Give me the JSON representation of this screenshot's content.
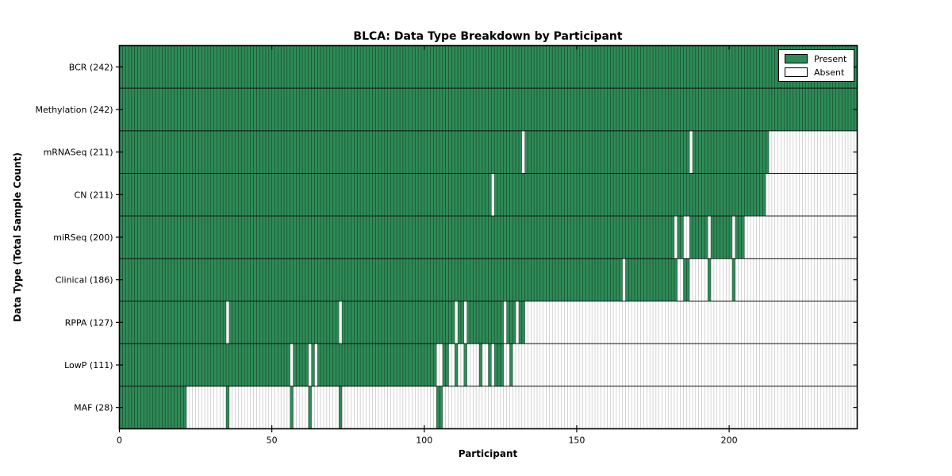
{
  "title": "BLCA: Data Type Breakdown by Participant",
  "xlabel": "Participant",
  "ylabel": "Data Type (Total Sample Count)",
  "legend": {
    "present_label": "Present",
    "absent_label": "Absent"
  },
  "colors": {
    "present": "#2E8B57",
    "absent": "#FFFFFF",
    "border": "#000000",
    "separator_dark": "rgba(0,0,0,0.55)",
    "separator_light": "rgba(0,0,0,0.28)"
  },
  "chart_data": {
    "type": "heatmap",
    "title": "BLCA: Data Type Breakdown by Participant",
    "xlabel": "Participant",
    "ylabel": "Data Type (Total Sample Count)",
    "n_participants": 242,
    "x_ticks": [
      0,
      50,
      100,
      150,
      200
    ],
    "xlim": [
      0,
      242
    ],
    "legend_entries": [
      "Present",
      "Absent"
    ],
    "legend_position": "upper right",
    "grid": false,
    "rows": [
      {
        "name": "BCR",
        "label": "BCR (242)",
        "count": 242,
        "present_ranges": [
          [
            0,
            241
          ]
        ]
      },
      {
        "name": "Methylation",
        "label": "Methylation (242)",
        "count": 242,
        "present_ranges": [
          [
            0,
            241
          ]
        ]
      },
      {
        "name": "mRNASeq",
        "label": "mRNASeq (211)",
        "count": 211,
        "present_ranges": [
          [
            0,
            131
          ],
          [
            133,
            186
          ],
          [
            188,
            212
          ]
        ]
      },
      {
        "name": "CN",
        "label": "CN (211)",
        "count": 211,
        "present_ranges": [
          [
            0,
            121
          ],
          [
            123,
            211
          ]
        ]
      },
      {
        "name": "miRSeq",
        "label": "miRSeq (200)",
        "count": 200,
        "present_ranges": [
          [
            0,
            181
          ],
          [
            183,
            184
          ],
          [
            187,
            192
          ],
          [
            194,
            200
          ],
          [
            202,
            204
          ]
        ]
      },
      {
        "name": "Clinical",
        "label": "Clinical (186)",
        "count": 186,
        "present_ranges": [
          [
            0,
            164
          ],
          [
            166,
            182
          ],
          [
            185,
            186
          ],
          [
            193,
            193
          ],
          [
            201,
            201
          ]
        ]
      },
      {
        "name": "RPPA",
        "label": "RPPA (127)",
        "count": 127,
        "present_ranges": [
          [
            0,
            34
          ],
          [
            36,
            71
          ],
          [
            73,
            109
          ],
          [
            111,
            112
          ],
          [
            114,
            125
          ],
          [
            127,
            129
          ],
          [
            131,
            132
          ]
        ]
      },
      {
        "name": "LowP",
        "label": "LowP (111)",
        "count": 111,
        "present_ranges": [
          [
            0,
            55
          ],
          [
            57,
            61
          ],
          [
            63,
            63
          ],
          [
            65,
            103
          ],
          [
            106,
            107
          ],
          [
            110,
            110
          ],
          [
            113,
            113
          ],
          [
            118,
            118
          ],
          [
            121,
            121
          ],
          [
            123,
            125
          ],
          [
            128,
            128
          ]
        ]
      },
      {
        "name": "MAF",
        "label": "MAF (28)",
        "count": 28,
        "present_ranges": [
          [
            0,
            21
          ],
          [
            35,
            35
          ],
          [
            56,
            56
          ],
          [
            62,
            62
          ],
          [
            72,
            72
          ],
          [
            104,
            105
          ]
        ]
      }
    ]
  }
}
